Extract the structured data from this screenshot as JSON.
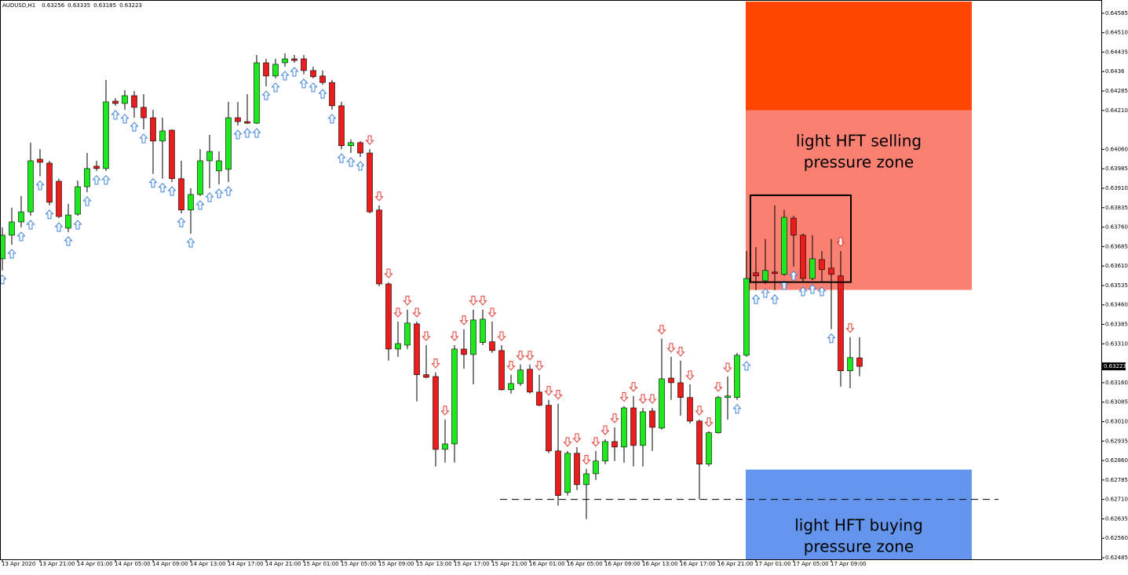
{
  "chart_data": {
    "type": "candlestick",
    "symbol": "AUDUSD,H1",
    "categories": [
      "13 Apr 2020",
      null,
      null,
      null,
      "13 Apr 21:00",
      null,
      null,
      null,
      "14 Apr 01:00",
      null,
      null,
      null,
      "14 Apr 05:00",
      null,
      null,
      null,
      "14 Apr 09:00",
      null,
      null,
      null,
      "14 Apr 13:00",
      null,
      null,
      null,
      "14 Apr 17:00",
      null,
      null,
      null,
      "14 Apr 21:00",
      null,
      null,
      null,
      "15 Apr 01:00",
      null,
      null,
      null,
      "15 Apr 05:00",
      null,
      null,
      null,
      "15 Apr 09:00",
      null,
      null,
      null,
      "15 Apr 13:00",
      null,
      null,
      null,
      "15 Apr 17:00",
      null,
      null,
      null,
      "15 Apr 21:00",
      null,
      null,
      null,
      "16 Apr 01:00",
      null,
      null,
      null,
      "16 Apr 05:00",
      null,
      null,
      null,
      "16 Apr 09:00",
      null,
      null,
      null,
      "16 Apr 13:00",
      null,
      null,
      null,
      "16 Apr 17:00",
      null,
      null,
      null,
      "16 Apr 21:00",
      null,
      null,
      null,
      "17 Apr 01:00",
      null,
      null,
      null,
      "17 Apr 05:00",
      null,
      null,
      null,
      "17 Apr 09:00",
      null,
      null,
      null
    ],
    "open": [
      0.63638,
      0.63729,
      0.6378,
      0.63819,
      0.64022,
      0.64007,
      0.63937,
      0.63756,
      0.6381,
      0.63916,
      0.63995,
      0.63986,
      0.64246,
      0.64237,
      0.64267,
      0.64222,
      0.64182,
      0.64092,
      0.64134,
      0.63947,
      0.63826,
      0.63886,
      0.64016,
      0.63977,
      0.63983,
      0.64182,
      0.64167,
      0.64161,
      0.64394,
      0.64343,
      0.64394,
      0.64409,
      0.64409,
      0.64364,
      0.64343,
      0.64318,
      0.64228,
      0.64074,
      0.64086,
      0.64046,
      0.63826,
      0.63541,
      0.6329,
      0.63305,
      0.63387,
      0.63191,
      0.63184,
      0.62903,
      0.62924,
      0.6329,
      0.63269,
      0.63315,
      0.63318,
      0.63284,
      0.63133,
      0.63157,
      0.63212,
      0.63124,
      0.63073,
      0.62897,
      0.62737,
      0.62888,
      0.62767,
      0.62809,
      0.62858,
      0.62933,
      0.62912,
      0.63063,
      0.62918,
      0.63051,
      0.62985,
      0.63178,
      0.6316,
      0.63103,
      0.63012,
      0.62846,
      0.62967,
      0.63103,
      0.63103,
      0.63266,
      0.63584,
      0.63553,
      0.63587,
      0.63578,
      0.63795,
      0.63729,
      0.63562,
      0.63635,
      0.63602,
      0.63572,
      0.63206,
      0.63256
    ],
    "high": [
      0.63759,
      0.63835,
      0.6388,
      0.64086,
      0.64061,
      0.64016,
      0.63947,
      0.6385,
      0.6394,
      0.64046,
      0.64016,
      0.64328,
      0.64258,
      0.64288,
      0.64285,
      0.64273,
      0.64213,
      0.64182,
      0.64137,
      0.64016,
      0.6391,
      0.64061,
      0.64116,
      0.64052,
      0.64243,
      0.64243,
      0.64273,
      0.64424,
      0.64409,
      0.64409,
      0.6443,
      0.64424,
      0.64424,
      0.64379,
      0.64364,
      0.64328,
      0.64243,
      0.64098,
      0.64092,
      0.64061,
      0.63844,
      0.63547,
      0.63396,
      0.63442,
      0.63396,
      0.63305,
      0.632,
      0.63018,
      0.63305,
      0.63366,
      0.63442,
      0.63442,
      0.63396,
      0.63305,
      0.63191,
      0.6323,
      0.6323,
      0.63191,
      0.63094,
      0.63079,
      0.62897,
      0.62912,
      0.62828,
      0.62897,
      0.62942,
      0.62988,
      0.6307,
      0.63109,
      0.63063,
      0.63063,
      0.6333,
      0.6326,
      0.63245,
      0.63154,
      0.63018,
      0.62973,
      0.63109,
      0.63184,
      0.63275,
      0.63668,
      0.63683,
      0.63714,
      0.63844,
      0.63826,
      0.63804,
      0.63735,
      0.63729,
      0.63668,
      0.63714,
      0.63668,
      0.63336,
      0.63335
    ],
    "low": [
      0.63593,
      0.63692,
      0.63759,
      0.63804,
      0.63956,
      0.63844,
      0.63795,
      0.63741,
      0.63804,
      0.63895,
      0.63977,
      0.63977,
      0.64228,
      0.64213,
      0.64182,
      0.64137,
      0.63965,
      0.63947,
      0.63934,
      0.63813,
      0.63735,
      0.6388,
      0.6391,
      0.63925,
      0.63934,
      0.64152,
      0.64158,
      0.64158,
      0.64303,
      0.64334,
      0.64379,
      0.64394,
      0.64349,
      0.64334,
      0.64309,
      0.64213,
      0.64061,
      0.64046,
      0.64031,
      0.63813,
      0.63532,
      0.63245,
      0.6326,
      0.6329,
      0.63088,
      0.63178,
      0.62837,
      0.62852,
      0.62852,
      0.63214,
      0.63154,
      0.63305,
      0.63275,
      0.6313,
      0.63118,
      0.63148,
      0.63118,
      0.6307,
      0.62888,
      0.62686,
      0.62725,
      0.62746,
      0.62634,
      0.62785,
      0.62846,
      0.62858,
      0.62852,
      0.62837,
      0.62837,
      0.62897,
      0.62979,
      0.63094,
      0.63033,
      0.63003,
      0.6271,
      0.62837,
      0.62964,
      0.63018,
      0.63094,
      0.6326,
      0.63517,
      0.63541,
      0.63517,
      0.63572,
      0.63608,
      0.63547,
      0.63556,
      0.63547,
      0.63366,
      0.63145,
      0.63139,
      0.63185
    ],
    "close": [
      0.63729,
      0.6378,
      0.63819,
      0.64016,
      0.6401,
      0.63856,
      0.63801,
      0.63807,
      0.63916,
      0.63986,
      0.63986,
      0.64243,
      0.64237,
      0.64267,
      0.64222,
      0.64182,
      0.64092,
      0.64131,
      0.63947,
      0.63826,
      0.63886,
      0.64016,
      0.64052,
      0.64016,
      0.64182,
      0.64167,
      0.64161,
      0.64394,
      0.64343,
      0.64388,
      0.64409,
      0.64403,
      0.64364,
      0.6434,
      0.64318,
      0.64228,
      0.64074,
      0.64086,
      0.64046,
      0.63819,
      0.63541,
      0.6329,
      0.63311,
      0.6339,
      0.63191,
      0.63181,
      0.62903,
      0.62924,
      0.6329,
      0.63269,
      0.63402,
      0.63405,
      0.63284,
      0.63133,
      0.63157,
      0.63209,
      0.63124,
      0.63073,
      0.62897,
      0.62725,
      0.62888,
      0.62767,
      0.62809,
      0.62858,
      0.62933,
      0.62912,
      0.63063,
      0.62918,
      0.63048,
      0.62988,
      0.63175,
      0.6316,
      0.63103,
      0.63012,
      0.62846,
      0.62967,
      0.63103,
      0.63109,
      0.63266,
      0.63562,
      0.63572,
      0.63593,
      0.63581,
      0.63798,
      0.63729,
      0.63562,
      0.63638,
      0.63596,
      0.63578,
      0.63206,
      0.63257,
      0.63223
    ],
    "signals": [
      "up",
      "up",
      "up",
      "up",
      "up",
      "up",
      "up",
      "up",
      "up",
      "up",
      "up",
      "up",
      "up",
      "up",
      "up",
      "up",
      "up",
      "up",
      "up",
      "up",
      "up",
      "up",
      "up",
      "up",
      "up",
      "up",
      "up",
      "up",
      "up",
      "up",
      "up",
      "up",
      "up",
      "up",
      "up",
      "up",
      "up",
      "up",
      "up",
      "down",
      "down",
      "down",
      "down",
      "down",
      "down",
      "down",
      "down",
      "down",
      "down",
      "down",
      "down",
      "down",
      "down",
      "down",
      "down",
      "down",
      "down",
      "down",
      "down",
      "down",
      "down",
      "down",
      "down",
      "down",
      "down",
      "down",
      "down",
      "down",
      "down",
      "down",
      "down",
      "down",
      "down",
      "down",
      "down",
      "down",
      "down",
      "down",
      "up",
      "up",
      "up",
      "up",
      "up",
      "up",
      "up",
      "up",
      "up",
      "up",
      "up",
      "down",
      "down",
      null
    ],
    "bull_color": "#1ee81e",
    "bear_color": "#ea1c1c",
    "signal_colors": {
      "up": "#3c82d8",
      "down": "#e23a32"
    },
    "ylim": [
      0.62479,
      0.6463
    ],
    "yticks": [
      0.64585,
      {
        "value": 0.6451,
        "label": "0.64510"
      },
      0.64435,
      0.6436,
      0.64285,
      {
        "value": 0.6421,
        "label": "0.64210"
      },
      {
        "value": 0.6406,
        "label": "0.64060"
      },
      0.63985,
      {
        "value": 0.6391,
        "label": "0.63910"
      },
      0.63835,
      {
        "value": 0.6376,
        "label": "0.63760"
      },
      0.63685,
      {
        "value": 0.6361,
        "label": "0.63610"
      },
      0.63535,
      {
        "value": 0.6346,
        "label": "0.63460"
      },
      0.63385,
      {
        "value": 0.6331,
        "label": "0.63310"
      },
      {
        "value": 0.6316,
        "label": "0.63160"
      },
      0.63085,
      {
        "value": 0.6301,
        "label": "0.63010"
      },
      0.62935,
      {
        "value": 0.6286,
        "label": "0.62860"
      },
      0.62785,
      {
        "value": 0.6271,
        "label": "0.62710"
      },
      0.62635,
      {
        "value": 0.6256,
        "label": "0.62560"
      },
      0.62485
    ],
    "zones": [
      {
        "color": "#ff4500",
        "ymin": 0.6421,
        "ymax": 0.6463
      },
      {
        "color": "#fa8072",
        "ymin": 0.63518,
        "ymax": 0.6421,
        "label": [
          "light HFT selling",
          "pressure zone"
        ]
      },
      {
        "color": "#6495ed",
        "ymin": 0.62479,
        "ymax": 0.62825,
        "label": [
          "light HFT buying",
          "pressure zone"
        ]
      }
    ],
    "box": {
      "ymin": 0.63548,
      "ymax": 0.63883
    },
    "support_level": 0.6271
  }
}
